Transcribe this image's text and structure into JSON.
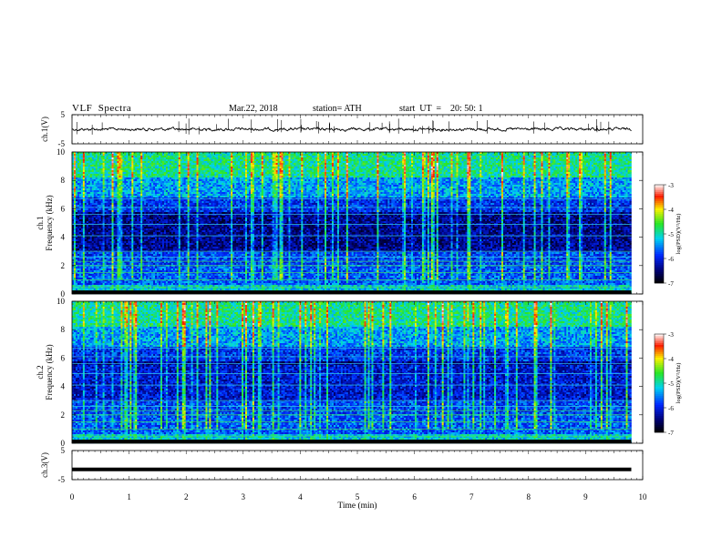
{
  "header": {
    "title": "VLF  Spectra",
    "date": "Mar.22, 2018",
    "station": "station= ATH",
    "start": "start  UT  =    20: 50: 1"
  },
  "chart_data": [
    {
      "type": "line",
      "id": "ch1-waveform",
      "ylabel": "ch.1(V)",
      "xlim": [
        0,
        10
      ],
      "ylim": [
        -5,
        5
      ],
      "yticks": [
        "5",
        "-5"
      ],
      "x_extent": [
        0,
        9.8
      ],
      "mean": 0.0
    },
    {
      "type": "heatmap",
      "id": "ch1-spectrogram",
      "ylabel": "ch.1\nFrequency  (kHz)",
      "xlim": [
        0,
        10
      ],
      "ylim": [
        0,
        10
      ],
      "yticks": [
        "0",
        "2",
        "4",
        "6",
        "8",
        "10"
      ],
      "x_extent": [
        0,
        9.8
      ],
      "colorbar": {
        "label": "log(PSD)(V²/Hz)",
        "range": [
          -7,
          -3
        ],
        "ticks": [
          "-3",
          "-4",
          "-5",
          "-6",
          "-7"
        ]
      }
    },
    {
      "type": "heatmap",
      "id": "ch2-spectrogram",
      "ylabel": "ch.2\nFrequency  (kHz)",
      "xlim": [
        0,
        10
      ],
      "ylim": [
        0,
        10
      ],
      "yticks": [
        "0",
        "2",
        "4",
        "6",
        "8",
        "10"
      ],
      "x_extent": [
        0,
        9.8
      ],
      "colorbar": {
        "label": "log(PSD)(V²/Hz)",
        "range": [
          -7,
          -3
        ],
        "ticks": [
          "-3",
          "-4",
          "-5",
          "-6",
          "-7"
        ]
      }
    },
    {
      "type": "line",
      "id": "ch3-waveform",
      "ylabel": "ch.3(V)",
      "xlim": [
        0,
        10
      ],
      "ylim": [
        -5,
        5
      ],
      "yticks": [
        "5",
        "-5"
      ],
      "x_extent": [
        0,
        9.8
      ],
      "mean": -1.5
    }
  ],
  "x_axis": {
    "label": "Time  (min)",
    "ticks": [
      "0",
      "1",
      "2",
      "3",
      "4",
      "5",
      "6",
      "7",
      "8",
      "9",
      "10"
    ]
  }
}
